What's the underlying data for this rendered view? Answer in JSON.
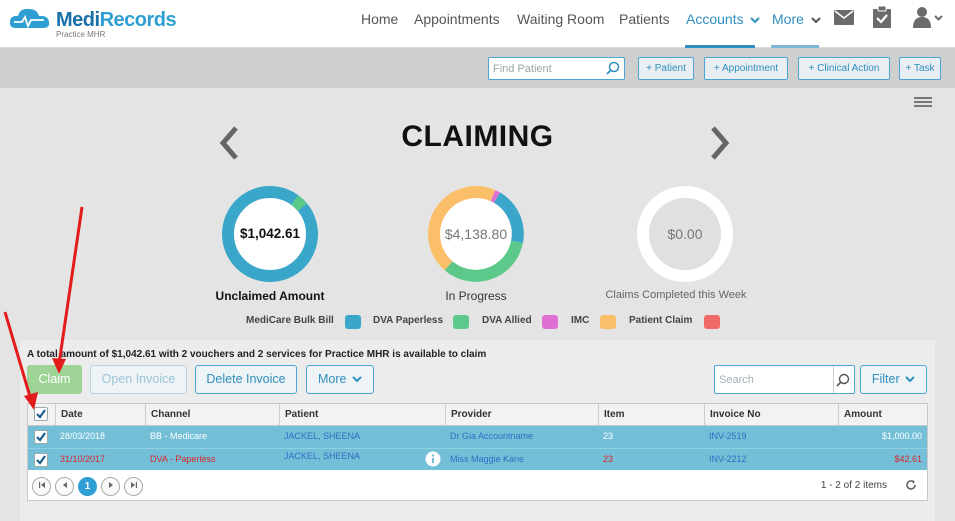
{
  "brand": {
    "name_part1": "Medi",
    "name_part2": "Records",
    "subtitle": "Practice MHR"
  },
  "nav": {
    "items": [
      {
        "label": "Home"
      },
      {
        "label": "Appointments"
      },
      {
        "label": "Waiting Room"
      },
      {
        "label": "Patients"
      },
      {
        "label": "Accounts"
      },
      {
        "label": "More"
      }
    ],
    "active": "Accounts"
  },
  "toolbar": {
    "find_placeholder": "Find Patient",
    "add_patient": "+ Patient",
    "add_appointment": "+ Appointment",
    "add_clinical_action": "+ Clinical Action",
    "add_task": "+ Task"
  },
  "page": {
    "title": "CLAIMING"
  },
  "donuts": [
    {
      "value": "$1,042.61",
      "caption": "Unclaimed Amount"
    },
    {
      "value": "$4,138.80",
      "caption": "In Progress"
    },
    {
      "value": "$0.00",
      "caption": "Claims Completed this Week"
    }
  ],
  "legend": [
    {
      "label": "MediCare Bulk Bill",
      "color": "#3aa6c9"
    },
    {
      "label": "DVA Paperless",
      "color": "#5cc98a"
    },
    {
      "label": "DVA Allied",
      "color": "#df6fd3"
    },
    {
      "label": "IMC",
      "color": "#fbbf6a"
    },
    {
      "label": "Patient Claim",
      "color": "#f06a6a"
    }
  ],
  "summary": "A total amount of $1,042.61 with 2 vouchers and 2 services for Practice MHR is available to claim",
  "actions": {
    "claim": "Claim",
    "open_invoice": "Open Invoice",
    "delete_invoice": "Delete Invoice",
    "more": "More",
    "search_placeholder": "Search",
    "filter": "Filter"
  },
  "table": {
    "columns": [
      "Date",
      "Channel",
      "Patient",
      "Provider",
      "Item",
      "Invoice No",
      "Amount"
    ],
    "rows": [
      {
        "date": "28/03/2018",
        "channel": "BB - Medicare",
        "patient": "JACKEL, SHEENA",
        "provider": "Dr Gia Accountname",
        "item": "23",
        "invoice": "INV-2519",
        "amount": "$1,000.00",
        "checked": true
      },
      {
        "date": "31/10/2017",
        "channel": "DVA - Paperless",
        "patient": "JACKEL, SHEENA",
        "provider": "Miss Maggie Kane",
        "item": "23",
        "invoice": "INV-2212",
        "amount": "$42.61",
        "checked": true
      }
    ],
    "pager": {
      "current_page": "1",
      "info": "1 - 2 of 2 items"
    }
  }
}
